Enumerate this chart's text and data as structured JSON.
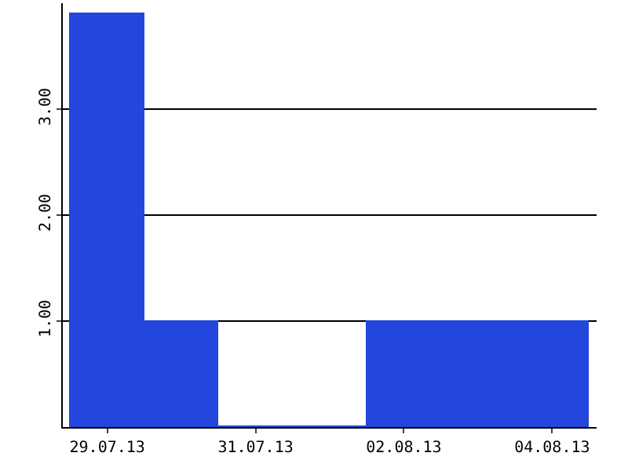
{
  "chart_data": {
    "type": "bar",
    "categories": [
      "29.07.13",
      null,
      "31.07.13",
      null,
      "02.08.13",
      null,
      "04.08.13"
    ],
    "values": [
      3.9,
      1,
      0,
      0,
      1,
      1,
      1
    ],
    "color": "#2346dc",
    "ylim": [
      0,
      4
    ],
    "yticks": [
      {
        "value": 1,
        "label": "1.00"
      },
      {
        "value": 2,
        "label": "2.00"
      },
      {
        "value": 3,
        "label": "3.00"
      }
    ],
    "grid": "y"
  }
}
